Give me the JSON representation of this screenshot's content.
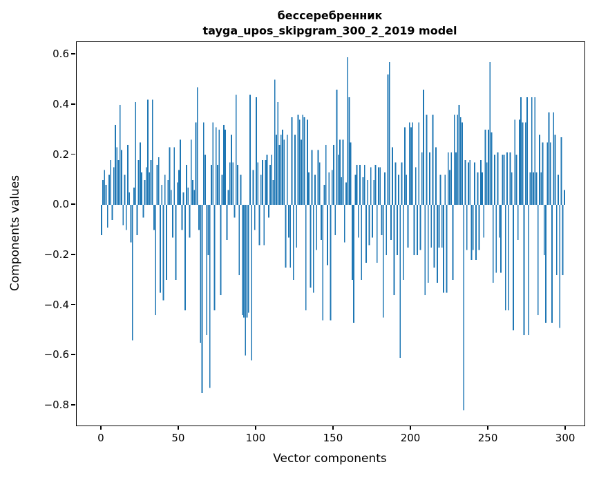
{
  "figure": {
    "title_line1": "бессеребренник",
    "title_line2": "tayga_upos_skipgram_300_2_2019 model",
    "word": "бессеребренник",
    "model": "tayga_upos_skipgram_300_2_2019"
  },
  "chart_data": {
    "type": "bar",
    "title": "бессеребренник\ntayga_upos_skipgram_300_2_2019 model",
    "xlabel": "Vector components",
    "ylabel": "Components values",
    "legend": "none",
    "grid": false,
    "bar_color": "#1f77b4",
    "n_components": 300,
    "xlim": [
      -16,
      312
    ],
    "ylim": [
      -0.88,
      0.65
    ],
    "x_ticks": {
      "values": [
        0,
        50,
        100,
        150,
        200,
        250,
        300
      ],
      "labels": [
        "0",
        "50",
        "100",
        "150",
        "200",
        "250",
        "300"
      ]
    },
    "y_ticks": {
      "values": [
        0.6,
        0.4,
        0.2,
        0.0,
        -0.2,
        -0.4,
        -0.6,
        -0.8
      ],
      "labels": [
        "0.6",
        "0.4",
        "0.2",
        "0.0",
        "−0.2",
        "−0.4",
        "−0.6",
        "−0.8"
      ]
    },
    "values": [
      -0.12,
      0.1,
      0.14,
      0.08,
      -0.09,
      0.12,
      0.18,
      -0.06,
      0.15,
      0.32,
      0.23,
      0.18,
      0.4,
      0.22,
      -0.08,
      0.12,
      -0.1,
      0.24,
      0.05,
      -0.15,
      -0.54,
      0.07,
      0.41,
      -0.12,
      0.18,
      0.25,
      0.13,
      -0.05,
      0.1,
      0.15,
      0.42,
      0.13,
      0.18,
      0.42,
      -0.1,
      -0.44,
      0.16,
      0.19,
      -0.35,
      0.08,
      -0.38,
      0.12,
      -0.3,
      0.1,
      0.23,
      0.06,
      -0.13,
      0.23,
      -0.3,
      0.09,
      0.14,
      0.26,
      -0.1,
      0.05,
      -0.42,
      0.16,
      0.07,
      -0.13,
      0.26,
      0.1,
      0.06,
      0.33,
      0.47,
      -0.1,
      -0.55,
      -0.75,
      0.33,
      0.2,
      -0.52,
      -0.2,
      -0.73,
      0.16,
      0.33,
      -0.42,
      0.31,
      0.16,
      0.3,
      -0.36,
      0.12,
      0.32,
      0.3,
      -0.14,
      0.06,
      0.17,
      0.28,
      0.17,
      -0.05,
      0.44,
      0.16,
      -0.28,
      0.12,
      -0.44,
      -0.45,
      -0.6,
      -0.45,
      -0.43,
      0.44,
      -0.62,
      0.14,
      -0.1,
      0.43,
      0.17,
      -0.16,
      0.12,
      0.18,
      -0.16,
      0.18,
      0.2,
      -0.05,
      0.16,
      0.2,
      0.1,
      0.5,
      0.28,
      0.41,
      0.24,
      0.28,
      0.3,
      0.26,
      -0.25,
      0.28,
      -0.13,
      -0.25,
      0.35,
      -0.3,
      0.28,
      -0.17,
      0.36,
      0.34,
      0.26,
      0.36,
      0.35,
      -0.42,
      0.34,
      0.13,
      -0.33,
      0.22,
      -0.35,
      0.12,
      -0.18,
      0.22,
      0.17,
      -0.14,
      -0.46,
      0.08,
      0.24,
      -0.24,
      0.13,
      -0.46,
      0.14,
      0.24,
      -0.12,
      0.46,
      0.2,
      0.26,
      0.11,
      0.26,
      -0.15,
      0.09,
      0.59,
      0.43,
      0.25,
      -0.3,
      -0.47,
      0.12,
      0.16,
      -0.13,
      0.16,
      -0.3,
      0.11,
      0.16,
      -0.23,
      0.1,
      -0.16,
      0.15,
      -0.13,
      0.1,
      0.16,
      -0.23,
      0.15,
      0.15,
      -0.12,
      -0.45,
      0.13,
      -0.2,
      0.52,
      0.57,
      -0.14,
      0.23,
      -0.36,
      0.17,
      -0.2,
      0.12,
      -0.61,
      0.17,
      -0.3,
      0.31,
      0.12,
      -0.17,
      0.33,
      0.31,
      0.33,
      -0.2,
      0.15,
      -0.2,
      0.33,
      -0.18,
      0.21,
      0.46,
      -0.36,
      0.36,
      -0.31,
      0.21,
      -0.17,
      0.36,
      -0.25,
      0.23,
      -0.31,
      -0.17,
      0.12,
      -0.17,
      -0.35,
      0.12,
      -0.35,
      0.21,
      0.14,
      0.21,
      -0.3,
      0.36,
      0.21,
      0.36,
      0.4,
      0.35,
      0.33,
      -0.82,
      0.18,
      -0.18,
      0.17,
      0.18,
      -0.22,
      -0.18,
      0.17,
      -0.22,
      0.13,
      -0.18,
      0.18,
      0.13,
      -0.13,
      0.3,
      0.17,
      0.3,
      0.57,
      0.29,
      -0.31,
      0.2,
      -0.27,
      0.21,
      -0.13,
      -0.27,
      0.2,
      0.2,
      -0.42,
      0.21,
      -0.42,
      0.21,
      0.13,
      -0.5,
      0.34,
      0.2,
      -0.14,
      0.34,
      0.43,
      0.33,
      -0.52,
      0.33,
      0.43,
      -0.52,
      0.13,
      0.43,
      0.13,
      0.43,
      0.13,
      -0.44,
      0.28,
      0.13,
      0.25,
      -0.2,
      -0.47,
      0.25,
      0.37,
      0.25,
      -0.47,
      0.37,
      0.28,
      -0.28,
      0.12,
      -0.49,
      0.27,
      -0.28,
      0.06
    ]
  }
}
